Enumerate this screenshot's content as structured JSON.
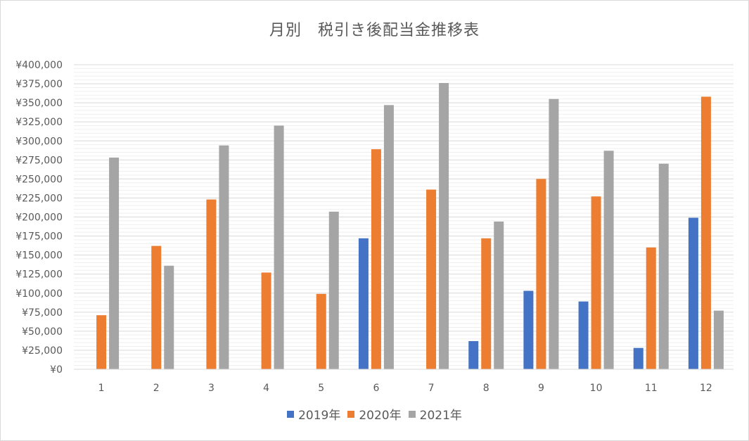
{
  "chart_data": {
    "type": "bar",
    "title": "月別　税引き後配当金推移表",
    "categories": [
      "1",
      "2",
      "3",
      "4",
      "5",
      "6",
      "7",
      "8",
      "9",
      "10",
      "11",
      "12"
    ],
    "series": [
      {
        "name": "2019年",
        "color": "#4472c4",
        "values": [
          0,
          0,
          0,
          0,
          0,
          172000,
          0,
          37000,
          103000,
          89000,
          28000,
          199000
        ]
      },
      {
        "name": "2020年",
        "color": "#ed7d31",
        "values": [
          71000,
          162000,
          223000,
          127000,
          99000,
          289000,
          236000,
          172000,
          250000,
          227000,
          160000,
          358000
        ]
      },
      {
        "name": "2021年",
        "color": "#a5a5a5",
        "values": [
          278000,
          136000,
          294000,
          320000,
          207000,
          347000,
          376000,
          194000,
          355000,
          287000,
          270000,
          77000
        ]
      }
    ],
    "yticks": [
      "¥0",
      "¥25,000",
      "¥50,000",
      "¥75,000",
      "¥100,000",
      "¥125,000",
      "¥150,000",
      "¥175,000",
      "¥200,000",
      "¥225,000",
      "¥250,000",
      "¥275,000",
      "¥300,000",
      "¥325,000",
      "¥350,000",
      "¥375,000",
      "¥400,000"
    ],
    "ylim": [
      0,
      400000
    ],
    "grid": true,
    "legend": "bottom"
  }
}
